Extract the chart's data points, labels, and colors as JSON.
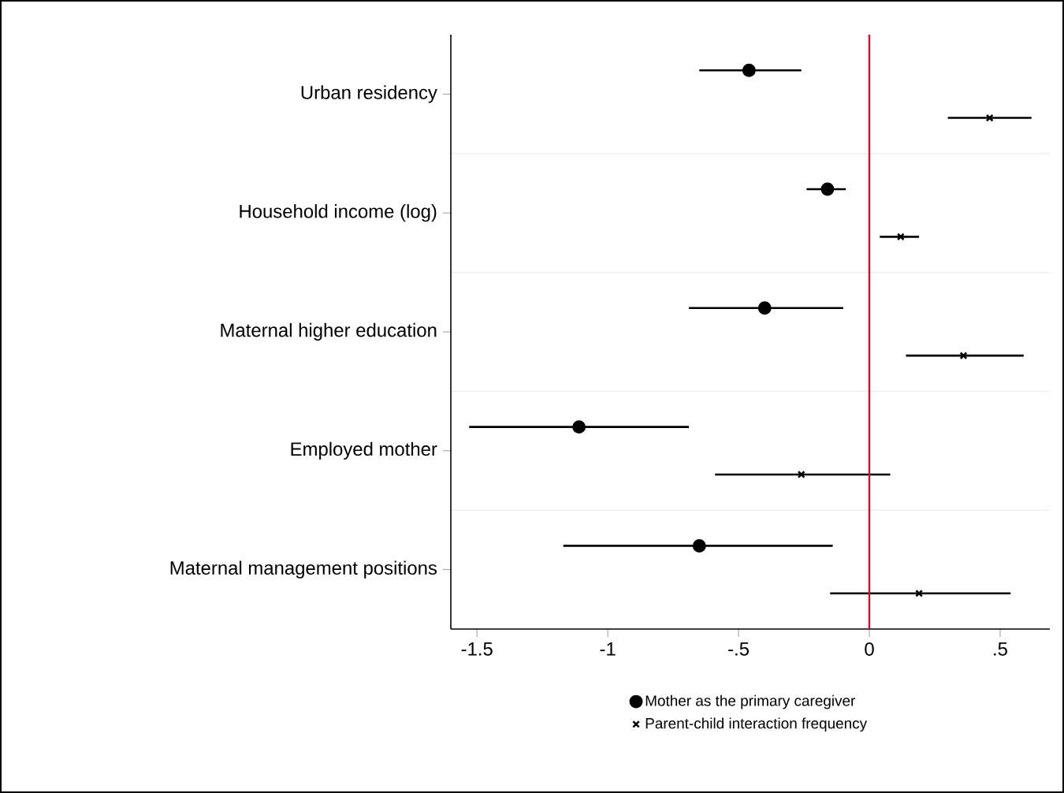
{
  "chart_data": {
    "type": "scatter",
    "orientation": "horizontal",
    "categories": [
      "Urban residency",
      "Household income (log)",
      "Maternal higher education",
      "Employed mother",
      "Maternal management positions"
    ],
    "series": [
      {
        "name": "Mother as the primary caregiver",
        "color": "#000000",
        "marker": "circle",
        "values": [
          -0.46,
          -0.16,
          -0.4,
          -1.11,
          -0.65
        ],
        "errors": [
          [
            -0.65,
            -0.26
          ],
          [
            -0.24,
            -0.09
          ],
          [
            -0.69,
            -0.1
          ],
          [
            -1.53,
            -0.69
          ],
          [
            -1.17,
            -0.14
          ]
        ]
      },
      {
        "name": "Parent-child interaction frequency",
        "color": "#000000",
        "marker": "cross",
        "values": [
          0.46,
          0.12,
          0.36,
          -0.26,
          0.19
        ],
        "errors": [
          [
            0.3,
            0.62
          ],
          [
            0.04,
            0.19
          ],
          [
            0.14,
            0.59
          ],
          [
            -0.59,
            0.08
          ],
          [
            -0.15,
            0.54
          ]
        ]
      }
    ],
    "xlim": [
      -1.6,
      0.69
    ],
    "xticks": [
      -1.5,
      -1,
      {
        "value": -0.5,
        "label": "-.5"
      },
      0,
      {
        "value": 0.5,
        "label": ".5"
      }
    ],
    "ref_lines": [
      {
        "axis": "x",
        "value": 0,
        "color": "#c8102e"
      }
    ],
    "grid": "y",
    "legend": "bottom"
  }
}
